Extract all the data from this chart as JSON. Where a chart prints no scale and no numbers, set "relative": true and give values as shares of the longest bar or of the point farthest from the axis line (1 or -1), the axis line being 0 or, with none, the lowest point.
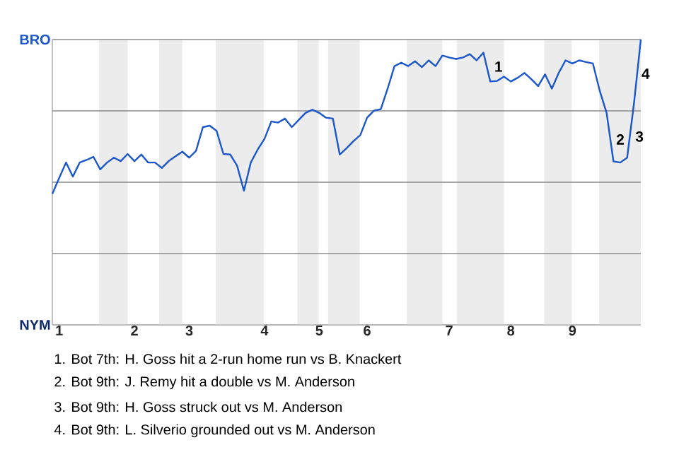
{
  "chart_data": {
    "type": "line",
    "relative": true,
    "categories": [
      null,
      "1",
      null,
      null,
      null,
      null,
      null,
      null,
      null,
      null,
      null,
      null,
      "2",
      null,
      null,
      null,
      null,
      null,
      null,
      null,
      "3",
      null,
      null,
      null,
      null,
      null,
      null,
      null,
      null,
      null,
      null,
      "4",
      null,
      null,
      null,
      null,
      null,
      null,
      null,
      "5",
      null,
      null,
      null,
      null,
      null,
      null,
      "6",
      null,
      null,
      null,
      null,
      null,
      null,
      null,
      null,
      null,
      null,
      null,
      "7",
      null,
      null,
      null,
      null,
      null,
      null,
      null,
      null,
      "8",
      null,
      null,
      null,
      null,
      null,
      null,
      null,
      null,
      "9",
      null,
      null,
      null,
      null,
      null,
      null,
      null,
      null,
      null,
      null
    ],
    "series": [
      {
        "color": "#1a56cc",
        "values": [
          0.459,
          0.515,
          0.569,
          0.52,
          0.569,
          0.578,
          0.589,
          0.545,
          0.569,
          0.586,
          0.574,
          0.599,
          0.574,
          0.597,
          0.569,
          0.569,
          0.55,
          0.574,
          0.591,
          0.607,
          0.586,
          0.61,
          0.693,
          0.698,
          0.68,
          0.599,
          0.597,
          0.558,
          0.47,
          0.569,
          0.614,
          0.652,
          0.713,
          0.709,
          0.723,
          0.693,
          0.718,
          0.743,
          0.754,
          0.743,
          0.726,
          0.723,
          0.597,
          0.619,
          0.644,
          0.665,
          0.726,
          0.751,
          0.756,
          0.828,
          0.907,
          0.919,
          0.907,
          0.924,
          0.903,
          0.927,
          0.907,
          0.944,
          0.937,
          0.932,
          0.937,
          0.949,
          0.927,
          0.954,
          0.853,
          0.855,
          0.87,
          0.853,
          0.866,
          0.883,
          0.861,
          0.837,
          0.878,
          0.828,
          0.883,
          0.927,
          0.916,
          0.927,
          0.921,
          0.916,
          0.82,
          0.743,
          0.573,
          0.569,
          0.586,
          0.776,
          1
        ]
      }
    ],
    "ref_lines": [
      {
        "axis": "y",
        "value": 0,
        "label": "NYM",
        "color": "#b3b3b3"
      },
      {
        "axis": "y",
        "value": 0.25,
        "label": null,
        "color": "#8c8c8c"
      },
      {
        "axis": "y",
        "value": 0.5,
        "label": null,
        "color": "#8c8c8c"
      },
      {
        "axis": "y",
        "value": 0.75,
        "label": null,
        "color": "#8c8c8c"
      },
      {
        "axis": "y",
        "value": 1,
        "label": "BRO",
        "color": "#8c8c8c"
      }
    ],
    "annotations": [
      "1",
      "2",
      "3",
      "4",
      "1. Bot 7th: H. Goss hit a 2-run home run vs B. Knackert",
      "2. Bot 9th: J. Remy hit a double vs M. Anderson",
      "3. Bot 9th: H. Goss struck out vs M. Anderson",
      "4. Bot 9th: L. Silverio grounded out vs M. Anderson"
    ]
  }
}
